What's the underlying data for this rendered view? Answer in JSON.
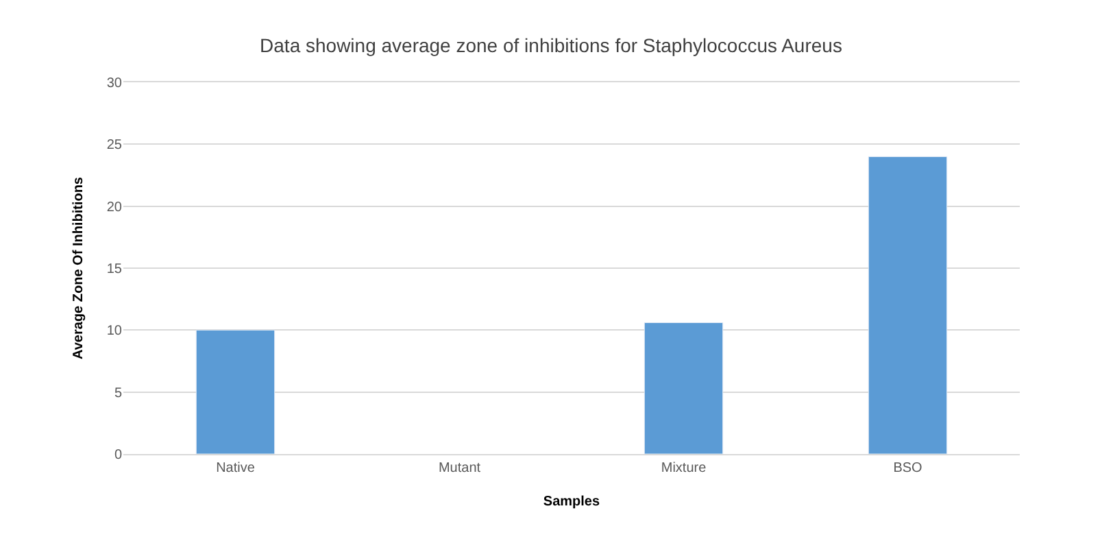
{
  "chart_data": {
    "type": "bar",
    "title": "Data showing average zone of inhibitions for Staphylococcus Aureus",
    "xlabel": "Samples",
    "ylabel": "Average Zone Of Inhibitions",
    "categories": [
      "Native",
      "Mutant",
      "Mixture",
      "BSO"
    ],
    "values": [
      10,
      null,
      10.6,
      24
    ],
    "color": "#5b9bd5",
    "ylim": [
      0,
      30
    ],
    "yticks": [
      0,
      5,
      10,
      15,
      20,
      25,
      30
    ],
    "grid": "y",
    "legend": false
  }
}
